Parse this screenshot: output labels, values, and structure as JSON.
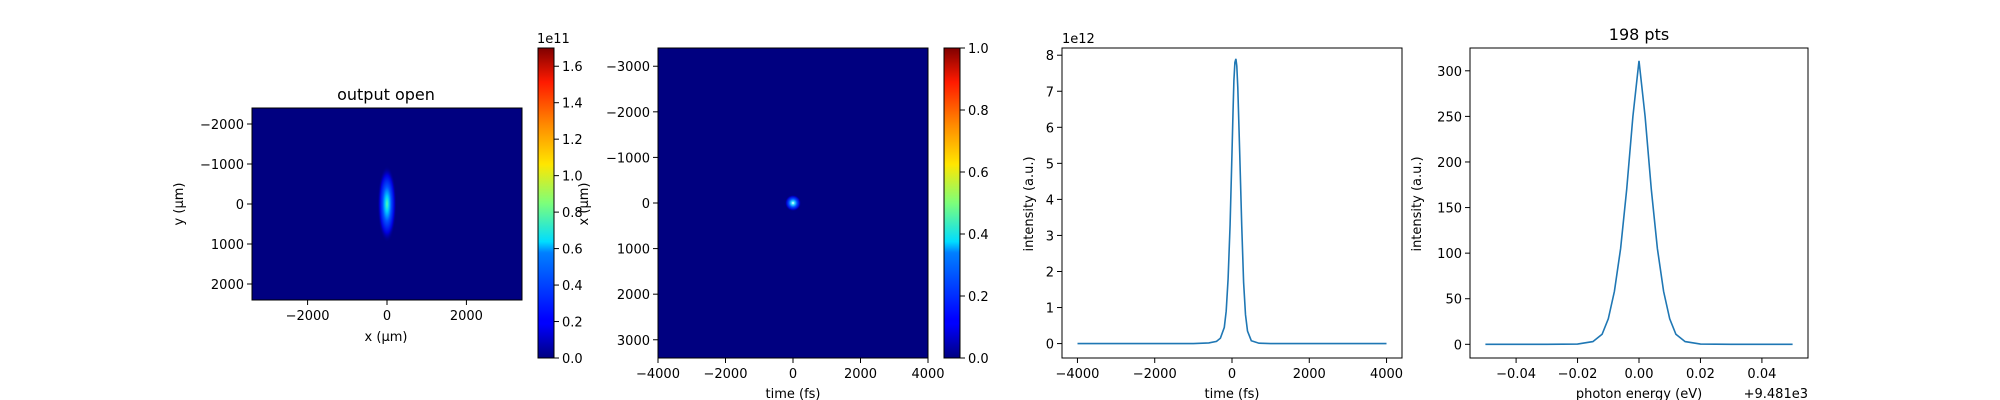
{
  "chart_data": [
    {
      "type": "heatmap",
      "title": "output open",
      "xlabel": "x (μm)",
      "ylabel": "y (μm)",
      "xlim": [
        -3400,
        3400
      ],
      "ylim": [
        2400,
        -2400
      ],
      "x_ticks": [
        -2000,
        0,
        2000
      ],
      "y_ticks": [
        -2000,
        -1000,
        0,
        1000,
        2000
      ],
      "x_tick_labels": [
        "−2000",
        "0",
        "2000"
      ],
      "y_tick_labels": [
        "−2000",
        "−1000",
        "0",
        "1000",
        "2000"
      ],
      "colormap": "jet",
      "background_color": "#000080",
      "feature": {
        "x": 0,
        "y": 0,
        "sigma_x": 120,
        "sigma_y": 480,
        "peak": 170000000000.0
      },
      "colorbar": {
        "range": [
          0,
          1.7
        ],
        "ticks": [
          0.0,
          0.2,
          0.4,
          0.6,
          0.8,
          1.0,
          1.2,
          1.4,
          1.6
        ],
        "tick_labels": [
          "0.0",
          "0.2",
          "0.4",
          "0.6",
          "0.8",
          "1.0",
          "1.2",
          "1.4",
          "1.6"
        ],
        "multiplier": "1e11"
      }
    },
    {
      "type": "heatmap",
      "title": "",
      "xlabel": "time (fs)",
      "ylabel": "x (μm)",
      "xlim": [
        -4000,
        4000
      ],
      "ylim": [
        3400,
        -3400
      ],
      "x_ticks": [
        -4000,
        -2000,
        0,
        2000,
        4000
      ],
      "y_ticks": [
        -3000,
        -2000,
        -1000,
        0,
        1000,
        2000,
        3000
      ],
      "x_tick_labels": [
        "−4000",
        "−2000",
        "0",
        "2000",
        "4000"
      ],
      "y_tick_labels": [
        "−3000",
        "−2000",
        "−1000",
        "0",
        "1000",
        "2000",
        "3000"
      ],
      "colormap": "jet",
      "background_color": "#000080",
      "feature": {
        "x": 0,
        "y": 0,
        "sigma_x": 120,
        "sigma_y": 90,
        "peak": 1.0
      },
      "colorbar": {
        "range": [
          0,
          1.0
        ],
        "ticks": [
          0.0,
          0.2,
          0.4,
          0.6,
          0.8,
          1.0
        ],
        "tick_labels": [
          "0.0",
          "0.2",
          "0.4",
          "0.6",
          "0.8",
          "1.0"
        ],
        "multiplier": ""
      }
    },
    {
      "type": "line",
      "title": "",
      "xlabel": "time (fs)",
      "ylabel": "intensity (a.u.)",
      "xlim": [
        -4400,
        4400
      ],
      "ylim": [
        -0.4,
        8.2
      ],
      "x_ticks": [
        -4000,
        -2000,
        0,
        2000,
        4000
      ],
      "y_ticks": [
        0,
        1,
        2,
        3,
        4,
        5,
        6,
        7,
        8
      ],
      "x_tick_labels": [
        "−4000",
        "−2000",
        "0",
        "2000",
        "4000"
      ],
      "y_tick_labels": [
        "0",
        "1",
        "2",
        "3",
        "4",
        "5",
        "6",
        "7",
        "8"
      ],
      "y_multiplier": "1e12",
      "series": [
        {
          "color": "#1f77b4",
          "x": [
            -4000,
            -2000,
            -1000,
            -600,
            -400,
            -300,
            -200,
            -150,
            -100,
            -50,
            0,
            25,
            50,
            75,
            100,
            125,
            150,
            200,
            250,
            300,
            350,
            400,
            500,
            700,
            1000,
            2000,
            4000
          ],
          "y": [
            0,
            0,
            0,
            0.02,
            0.06,
            0.15,
            0.45,
            0.9,
            1.8,
            3.3,
            5.3,
            6.4,
            7.3,
            7.8,
            7.9,
            7.7,
            7.1,
            5.3,
            3.3,
            1.7,
            0.8,
            0.35,
            0.08,
            0.01,
            0,
            0,
            0
          ]
        }
      ]
    },
    {
      "type": "line",
      "title": "198 pts",
      "xlabel": "photon energy (eV)",
      "ylabel": "intensity (a.u.)",
      "xlim": [
        -0.055,
        0.055
      ],
      "ylim": [
        -15,
        325
      ],
      "x_ticks": [
        -0.04,
        -0.02,
        0.0,
        0.02,
        0.04
      ],
      "y_ticks": [
        0,
        50,
        100,
        150,
        200,
        250,
        300
      ],
      "x_tick_labels": [
        "−0.04",
        "−0.02",
        "0.00",
        "0.02",
        "0.04"
      ],
      "y_tick_labels": [
        "0",
        "50",
        "100",
        "150",
        "200",
        "250",
        "300"
      ],
      "x_offset": "+9.481e3",
      "series": [
        {
          "color": "#1f77b4",
          "x": [
            -0.05,
            -0.03,
            -0.02,
            -0.015,
            -0.012,
            -0.01,
            -0.008,
            -0.006,
            -0.004,
            -0.002,
            0.0,
            0.002,
            0.004,
            0.006,
            0.008,
            0.01,
            0.012,
            0.015,
            0.02,
            0.03,
            0.05
          ],
          "y": [
            0,
            0,
            0.3,
            3,
            11,
            28,
            58,
            105,
            170,
            250,
            311,
            250,
            170,
            105,
            58,
            28,
            11,
            3,
            0.3,
            0,
            0
          ]
        }
      ]
    }
  ]
}
